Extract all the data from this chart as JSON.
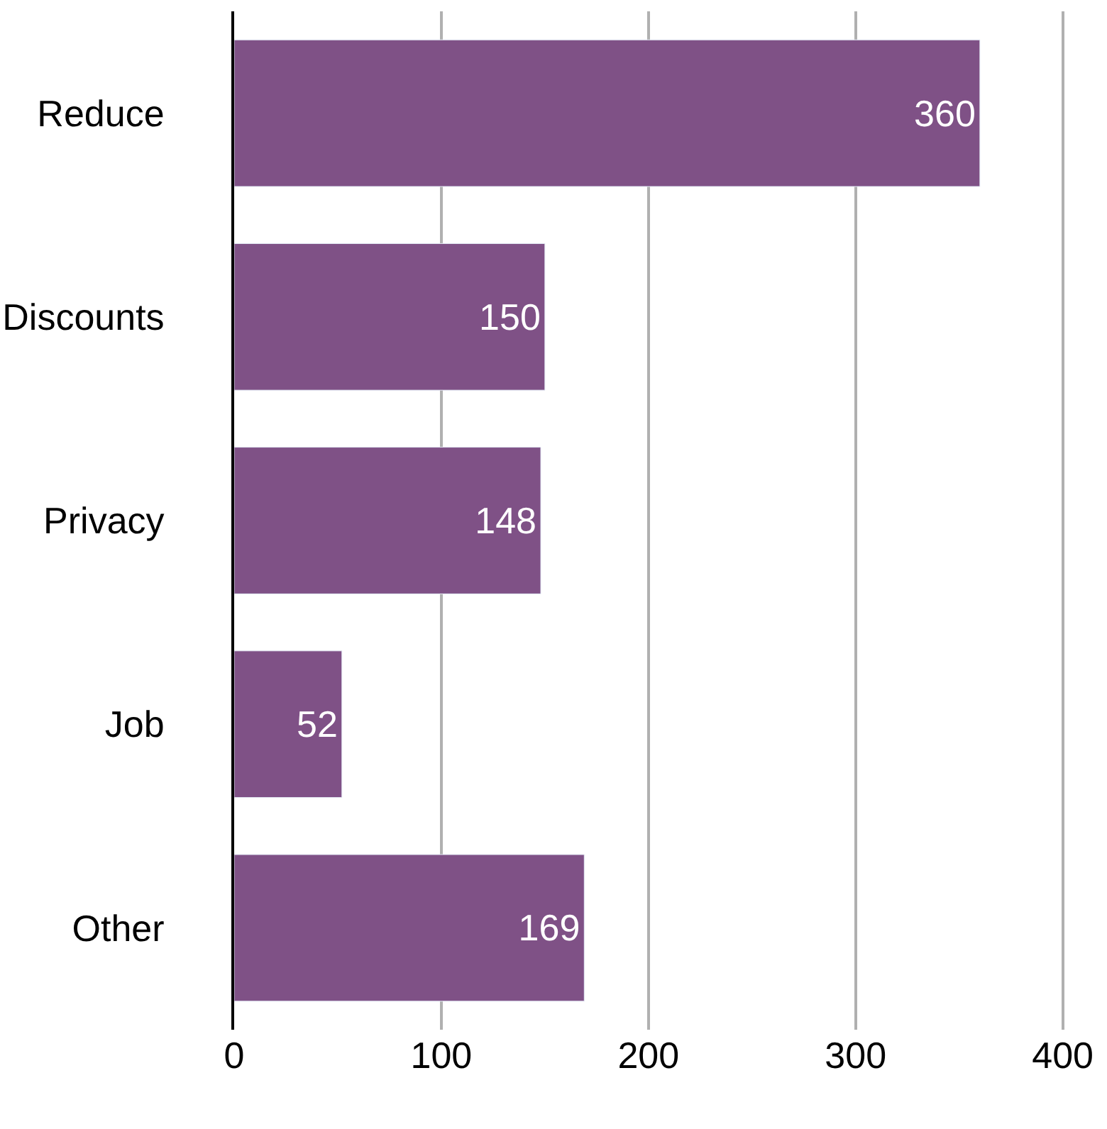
{
  "chart_data": {
    "type": "bar",
    "orientation": "horizontal",
    "categories": [
      "Reduce",
      "Discounts",
      "Privacy",
      "Job",
      "Other"
    ],
    "values": [
      360,
      150,
      148,
      52,
      169
    ],
    "color": "#7f5186",
    "xlim": [
      0,
      420
    ],
    "xticks": [
      0,
      100,
      200,
      300,
      400
    ],
    "grid": "x",
    "data_labels": true
  }
}
